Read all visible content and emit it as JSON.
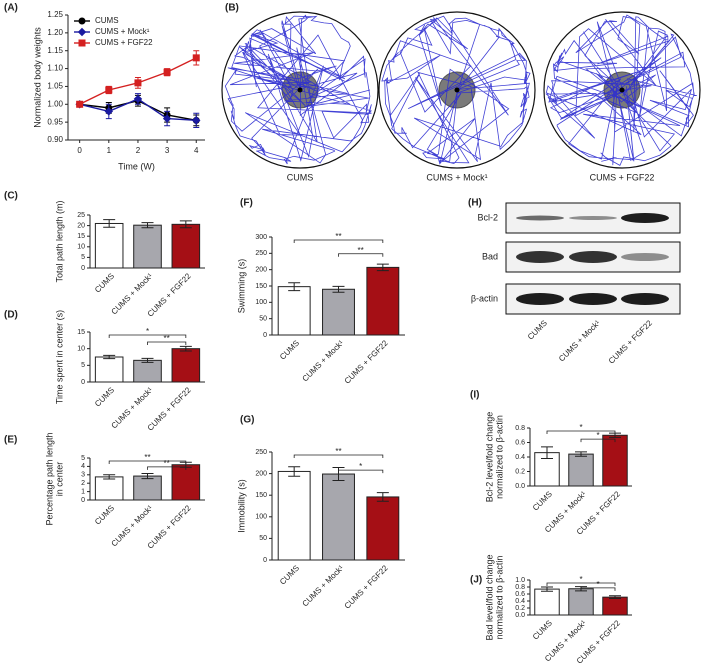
{
  "chart_data": [
    {
      "type": "line",
      "panel": "(A)",
      "ylabel": "Normalized body weights",
      "xlabel": "Time (W)",
      "x": [
        0,
        1,
        2,
        3,
        4
      ],
      "xlim": [
        -0.4,
        4.3
      ],
      "xticks": [
        0,
        1,
        2,
        3,
        4
      ],
      "ylim": [
        0.9,
        1.25
      ],
      "yticks": [
        {
          "value": 0.9,
          "label": "0.90"
        },
        0.95,
        {
          "value": 1,
          "label": "1.00"
        },
        1.05,
        {
          "value": 1.1,
          "label": "1.10"
        },
        1.15,
        {
          "value": 1.2,
          "label": "1.20"
        },
        1.25
      ],
      "legend": "upper left",
      "series": [
        {
          "name": "CUMS",
          "color": "#000000",
          "marker": "circle",
          "values": [
            1.0,
            0.99,
            1.01,
            0.97,
            0.955
          ],
          "errors": [
            0.005,
            0.015,
            0.015,
            0.02,
            0.015
          ]
        },
        {
          "name": "CUMS + Mock¹",
          "color": "#1a1aa0",
          "marker": "diamond",
          "values": [
            1.0,
            0.98,
            1.015,
            0.96,
            0.955
          ],
          "errors": [
            0.005,
            0.02,
            0.015,
            0.02,
            0.02
          ]
        },
        {
          "name": "CUMS + FGF22",
          "color": "#d42020",
          "marker": "square",
          "values": [
            1.0,
            1.04,
            1.06,
            1.09,
            1.13
          ],
          "errors": [
            0.005,
            0.01,
            0.015,
            0.01,
            0.02
          ]
        }
      ]
    },
    {
      "type": "tracking",
      "panel": "(B)",
      "categories": [
        "CUMS",
        "CUMS + Mock¹",
        "CUMS + FGF22"
      ]
    },
    {
      "type": "bar",
      "panel": "(C)",
      "ylabel": "Total path length (m)",
      "categories": [
        "CUMS",
        "CUMS + Mock¹",
        "CUMS + FGF22"
      ],
      "values": [
        21,
        20.2,
        20.6
      ],
      "errors": [
        1.8,
        1.2,
        1.6
      ],
      "colors": [
        "#ffffff",
        "#a7a7ad",
        "#a50f15"
      ],
      "ylim": [
        0,
        25
      ],
      "yticks": [
        0,
        5,
        10,
        15,
        20,
        25
      ],
      "annotations": []
    },
    {
      "type": "bar",
      "panel": "(D)",
      "ylabel": "Time spent in center (s)",
      "categories": [
        "CUMS",
        "CUMS + Mock¹",
        "CUMS + FGF22"
      ],
      "values": [
        7.5,
        6.5,
        10
      ],
      "errors": [
        0.5,
        0.6,
        0.7
      ],
      "colors": [
        "#ffffff",
        "#a7a7ad",
        "#a50f15"
      ],
      "ylim": [
        0,
        15
      ],
      "yticks": [
        0,
        5,
        10,
        15
      ],
      "annotations": [
        "*",
        "**"
      ]
    },
    {
      "type": "bar",
      "panel": "(E)",
      "ylabel": [
        "Percentage path length",
        "in center"
      ],
      "categories": [
        "CUMS",
        "CUMS + Mock¹",
        "CUMS + FGF22"
      ],
      "values": [
        2.75,
        2.85,
        4.2
      ],
      "errors": [
        0.25,
        0.3,
        0.3
      ],
      "colors": [
        "#ffffff",
        "#a7a7ad",
        "#a50f15"
      ],
      "ylim": [
        0,
        5
      ],
      "yticks": [
        0,
        1,
        2,
        3,
        4,
        5
      ],
      "annotations": [
        "**",
        "**"
      ]
    },
    {
      "type": "bar",
      "panel": "(F)",
      "ylabel": "Swimming (s)",
      "categories": [
        "CUMS",
        "CUMS + Mock¹",
        "CUMS + FGF22"
      ],
      "values": [
        148,
        140,
        207
      ],
      "errors": [
        12,
        9,
        10
      ],
      "colors": [
        "#ffffff",
        "#a7a7ad",
        "#a50f15"
      ],
      "ylim": [
        0,
        300
      ],
      "yticks": [
        0,
        50,
        100,
        150,
        200,
        250,
        300
      ],
      "annotations": [
        "**",
        "**"
      ]
    },
    {
      "type": "bar",
      "panel": "(G)",
      "ylabel": "Immobility (s)",
      "categories": [
        "CUMS",
        "CUMS + Mock¹",
        "CUMS + FGF22"
      ],
      "values": [
        205,
        199,
        146
      ],
      "errors": [
        11,
        15,
        10
      ],
      "colors": [
        "#ffffff",
        "#a7a7ad",
        "#a50f15"
      ],
      "ylim": [
        0,
        250
      ],
      "yticks": [
        0,
        50,
        100,
        150,
        200,
        250
      ],
      "annotations": [
        "**",
        "*"
      ]
    },
    {
      "type": "blot",
      "panel": "(H)",
      "rows": [
        "Bcl-2",
        "Bad",
        "β-actin"
      ],
      "categories": [
        "CUMS",
        "CUMS + Mock¹",
        "CUMS + FGF22"
      ]
    },
    {
      "type": "bar",
      "panel": "(I)",
      "ylabel": [
        "Bcl-2 level/fold change",
        "normalized to β-actin"
      ],
      "categories": [
        "CUMS",
        "CUMS + Mock¹",
        "CUMS + FGF22"
      ],
      "values": [
        0.46,
        0.44,
        0.7
      ],
      "errors": [
        0.08,
        0.03,
        0.03
      ],
      "colors": [
        "#ffffff",
        "#a7a7ad",
        "#a50f15"
      ],
      "ylim": [
        0,
        0.8
      ],
      "yticks": [
        {
          "value": 0,
          "label": "0.0"
        },
        0.2,
        0.4,
        0.6,
        0.8
      ],
      "annotations": [
        "*",
        "*"
      ]
    },
    {
      "type": "bar",
      "panel": "(J)",
      "ylabel": [
        "Bad level/fold change",
        "normalized to β-actin"
      ],
      "categories": [
        "CUMS",
        "CUMS + Mock¹",
        "CUMS + FGF22"
      ],
      "values": [
        0.74,
        0.75,
        0.51
      ],
      "errors": [
        0.06,
        0.06,
        0.04
      ],
      "colors": [
        "#ffffff",
        "#a7a7ad",
        "#a50f15"
      ],
      "ylim": [
        0,
        1
      ],
      "yticks": [
        {
          "value": 0,
          "label": "0.0"
        },
        0.2,
        0.4,
        0.6,
        0.8,
        {
          "value": 1,
          "label": "1.0"
        }
      ],
      "annotations": [
        "*",
        "*"
      ]
    }
  ]
}
